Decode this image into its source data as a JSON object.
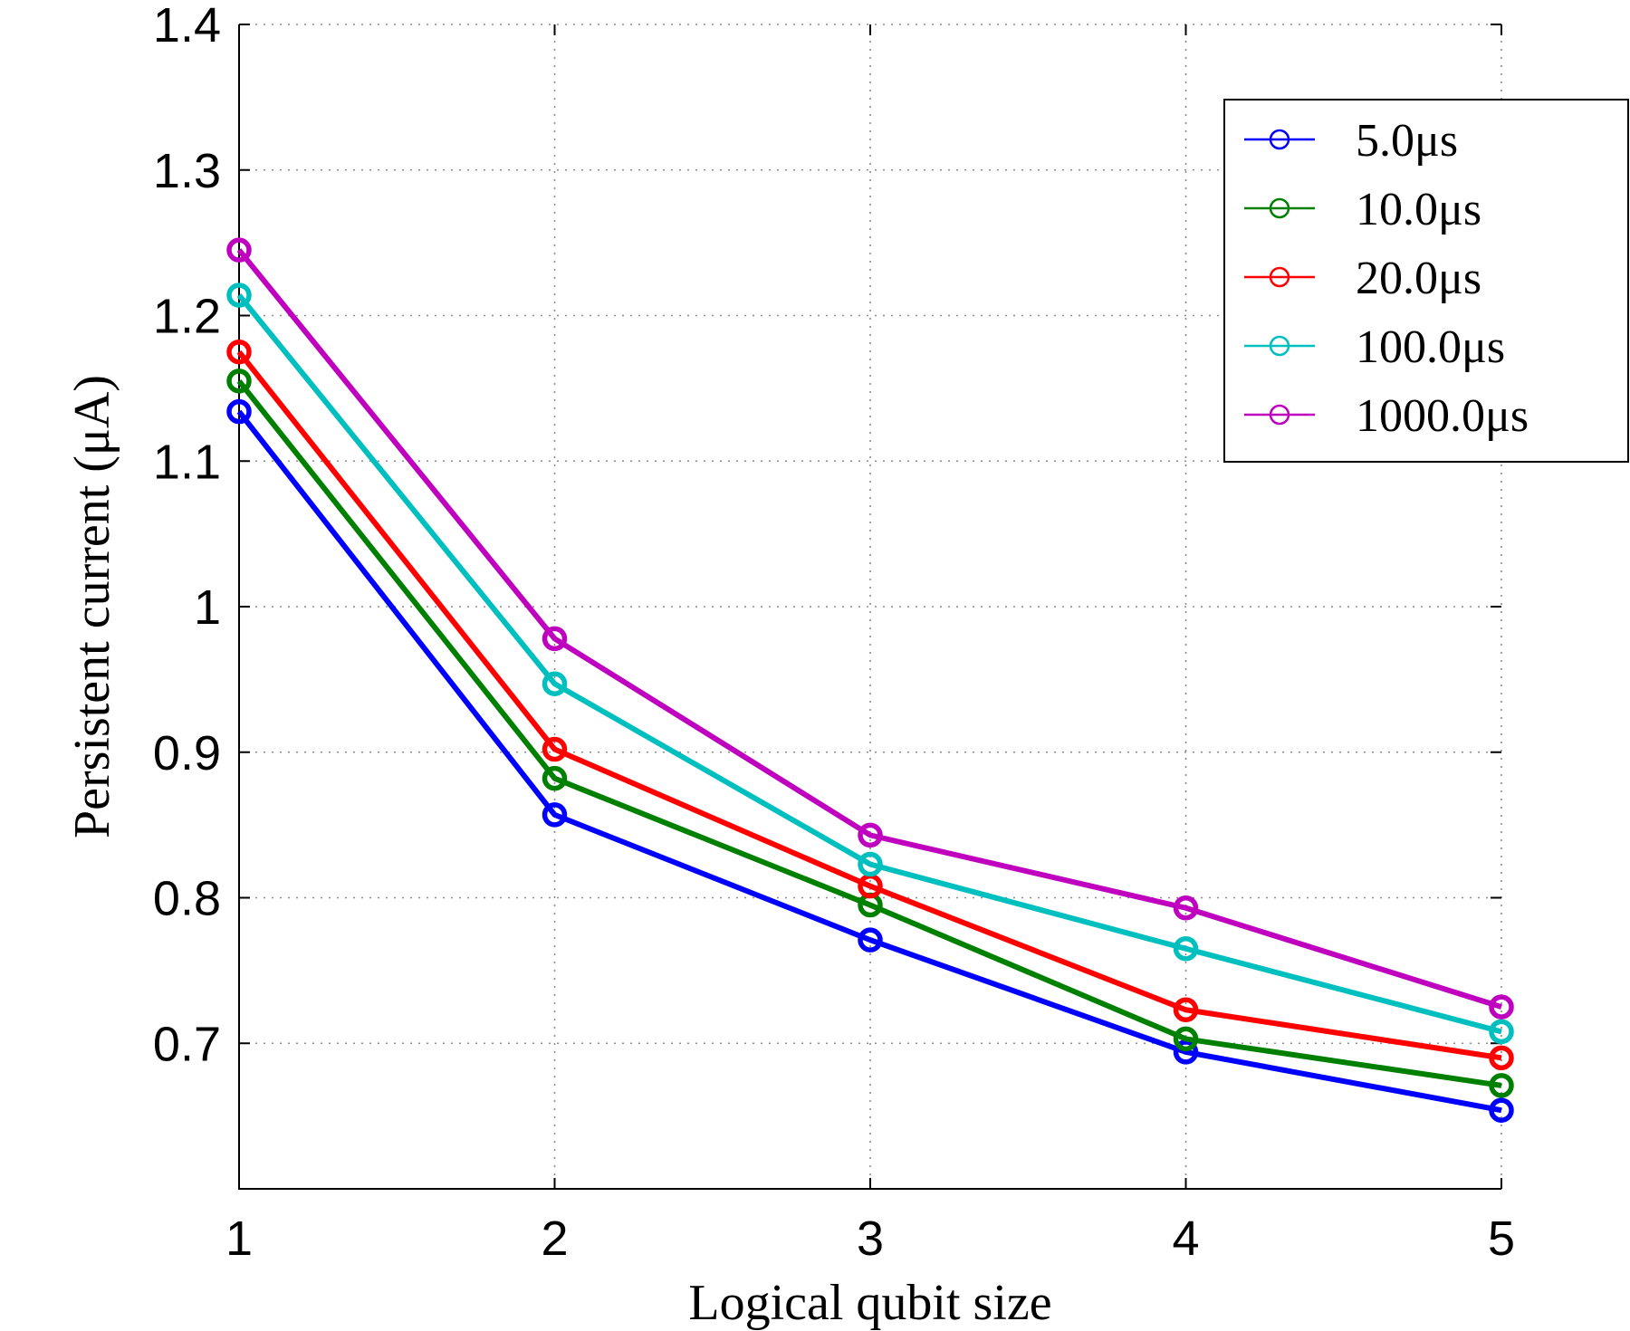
{
  "chart_data": {
    "type": "line",
    "title": "",
    "xlabel": "Logical qubit size",
    "ylabel": "Persistent current (μA)",
    "x": [
      1,
      2,
      3,
      4,
      5
    ],
    "xlim": [
      1,
      5
    ],
    "ylim": [
      0.6,
      1.4
    ],
    "xticks": [
      "1",
      "2",
      "3",
      "4",
      "5"
    ],
    "yticks": [
      {
        "value": 0.7,
        "label": "0.7"
      },
      {
        "value": 0.8,
        "label": "0.8"
      },
      {
        "value": 0.9,
        "label": "0.9"
      },
      {
        "value": 1.0,
        "label": "1"
      },
      {
        "value": 1.1,
        "label": "1.1"
      },
      {
        "value": 1.2,
        "label": "1.2"
      },
      {
        "value": 1.3,
        "label": "1.3"
      },
      {
        "value": 1.4,
        "label": "1.4"
      }
    ],
    "grid": true,
    "legend_position": "top-right",
    "series": [
      {
        "name": "5.0μs",
        "color": "#0000ff",
        "values": [
          1.134,
          0.857,
          0.771,
          0.694,
          0.654
        ]
      },
      {
        "name": "10.0μs",
        "color": "#008000",
        "values": [
          1.155,
          0.882,
          0.795,
          0.703,
          0.671
        ]
      },
      {
        "name": "20.0μs",
        "color": "#ff0000",
        "values": [
          1.175,
          0.902,
          0.808,
          0.723,
          0.69
        ]
      },
      {
        "name": "100.0μs",
        "color": "#00bfbf",
        "values": [
          1.214,
          0.947,
          0.823,
          0.765,
          0.708
        ]
      },
      {
        "name": "1000.0μs",
        "color": "#bf00bf",
        "values": [
          1.245,
          0.978,
          0.843,
          0.793,
          0.725
        ]
      }
    ]
  }
}
